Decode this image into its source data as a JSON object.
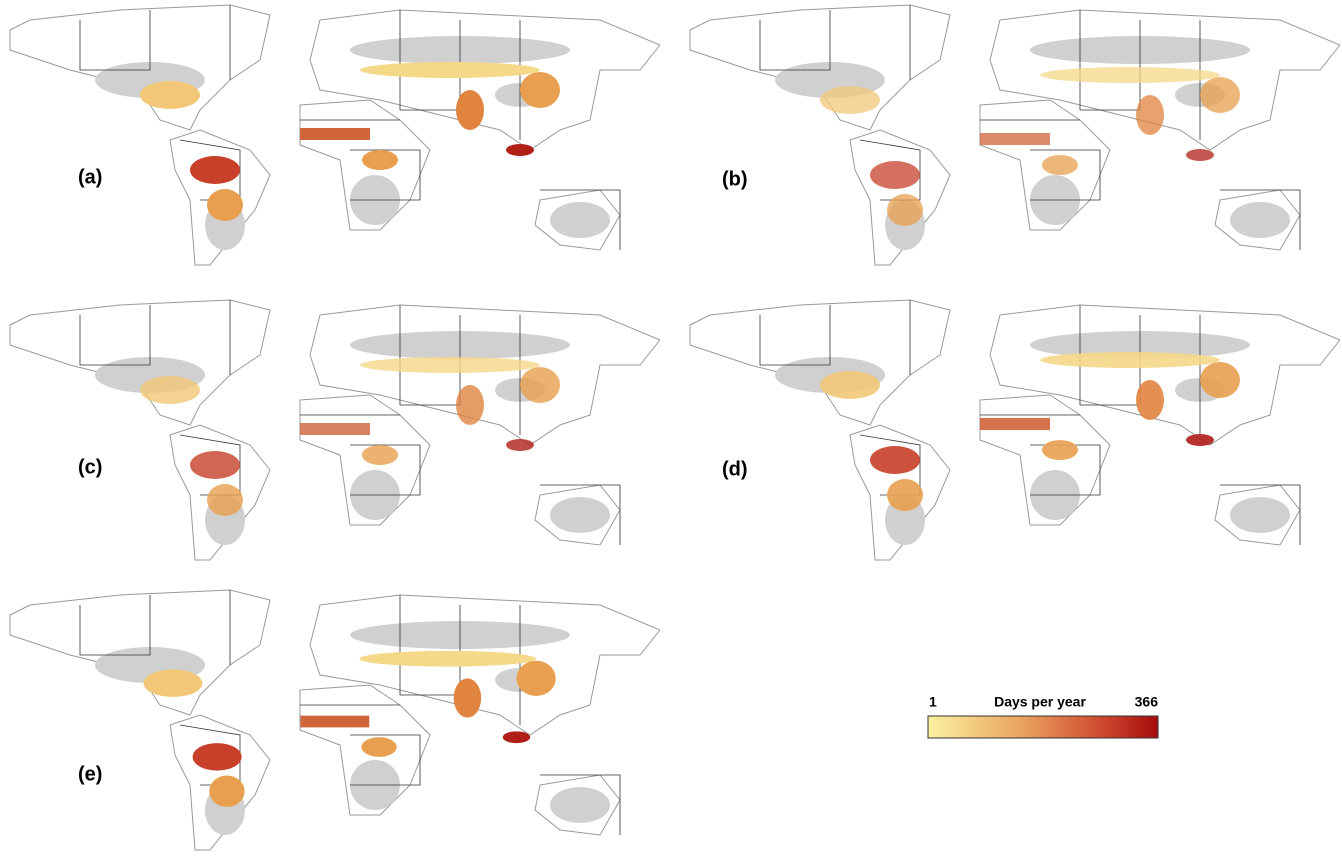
{
  "panels": [
    {
      "label": "(a)"
    },
    {
      "label": "(b)"
    },
    {
      "label": "(c)"
    },
    {
      "label": "(d)"
    },
    {
      "label": "(e)"
    }
  ],
  "legend": {
    "min": 1,
    "title": "Days per year",
    "max": 366
  }
}
